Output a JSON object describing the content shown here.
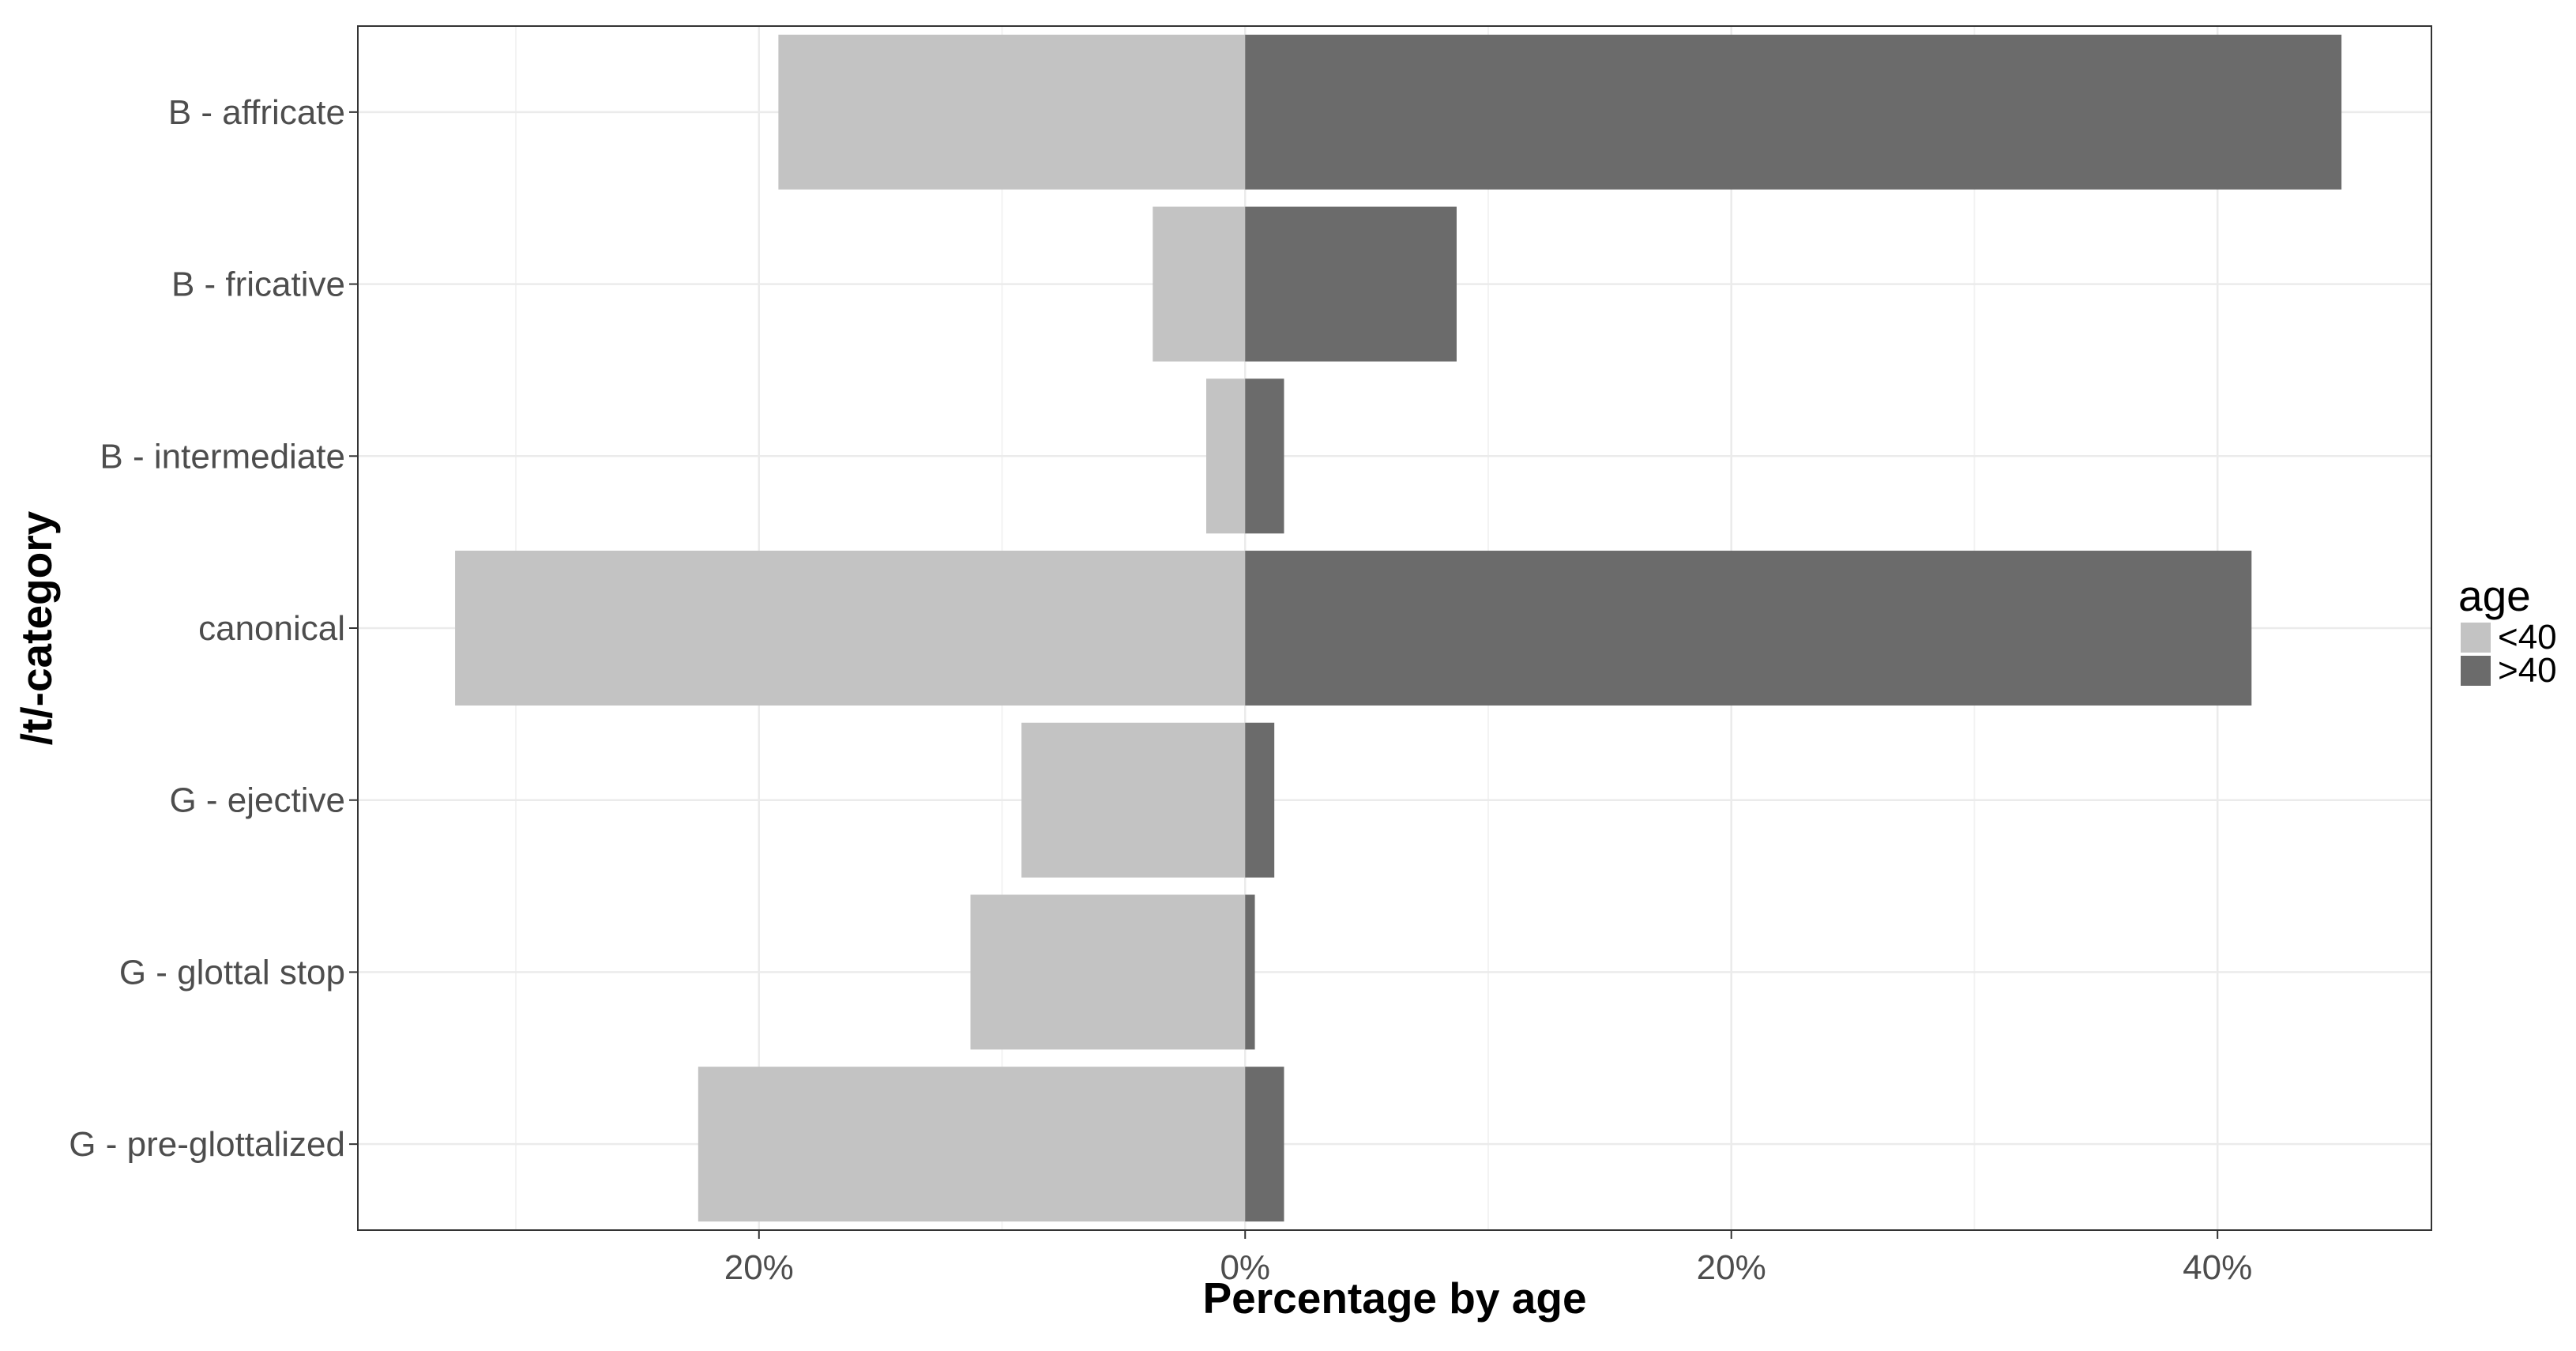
{
  "chart_data": {
    "type": "bar",
    "orientation": "horizontal",
    "layout": "diverging",
    "xlabel": "Percentage by age",
    "ylabel": "/t/-category",
    "xlim": [
      -36.5,
      48.8
    ],
    "x_ticks": [
      {
        "value": -20,
        "label": "20%"
      },
      {
        "value": 0,
        "label": "0%"
      },
      {
        "value": 20,
        "label": "20%"
      },
      {
        "value": 40,
        "label": "40%"
      }
    ],
    "x_minor_ticks": [
      -30,
      -10,
      10,
      30
    ],
    "grid": true,
    "legend": {
      "title": "age",
      "position": "right"
    },
    "categories": [
      "B - affricate",
      "B - fricative",
      "B - intermediate",
      "canonical",
      "G - ejective",
      "G - glottal stop",
      "G - pre-glottalized"
    ],
    "series": [
      {
        "name": "<40",
        "color": "#c3c3c3",
        "direction": "negative",
        "values": [
          19.2,
          3.8,
          1.6,
          32.5,
          9.2,
          11.3,
          22.5
        ]
      },
      {
        "name": ">40",
        "color": "#6b6b6b",
        "direction": "positive",
        "values": [
          45.1,
          8.7,
          1.6,
          41.4,
          1.2,
          0.4,
          1.6
        ]
      }
    ]
  }
}
